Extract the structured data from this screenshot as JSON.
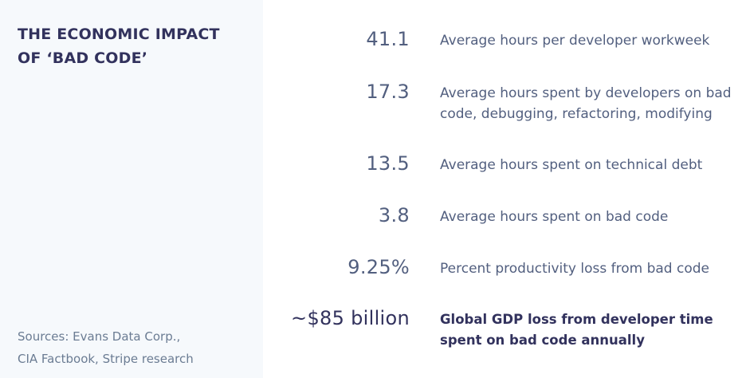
{
  "title": {
    "line1": "THE ECONOMIC IMPACT",
    "line2": "OF ‘BAD CODE’"
  },
  "sources": {
    "line1": "Sources: Evans Data Corp.,",
    "line2": "CIA Factbook, Stripe research"
  },
  "stats": [
    {
      "value": "41.1",
      "description": "Average hours per developer workweek"
    },
    {
      "value": "17.3",
      "description": "Average hours spent by developers on bad code, debugging, refactoring, modifying"
    },
    {
      "value": "13.5",
      "description": "Average hours spent on technical debt"
    },
    {
      "value": "3.8",
      "description": "Average hours spent on bad code"
    },
    {
      "value": "9.25%",
      "description": "Percent productivity loss from bad code"
    },
    {
      "value": "~$85 billion",
      "description": "Global GDP loss from developer time spent on bad code annually"
    }
  ]
}
